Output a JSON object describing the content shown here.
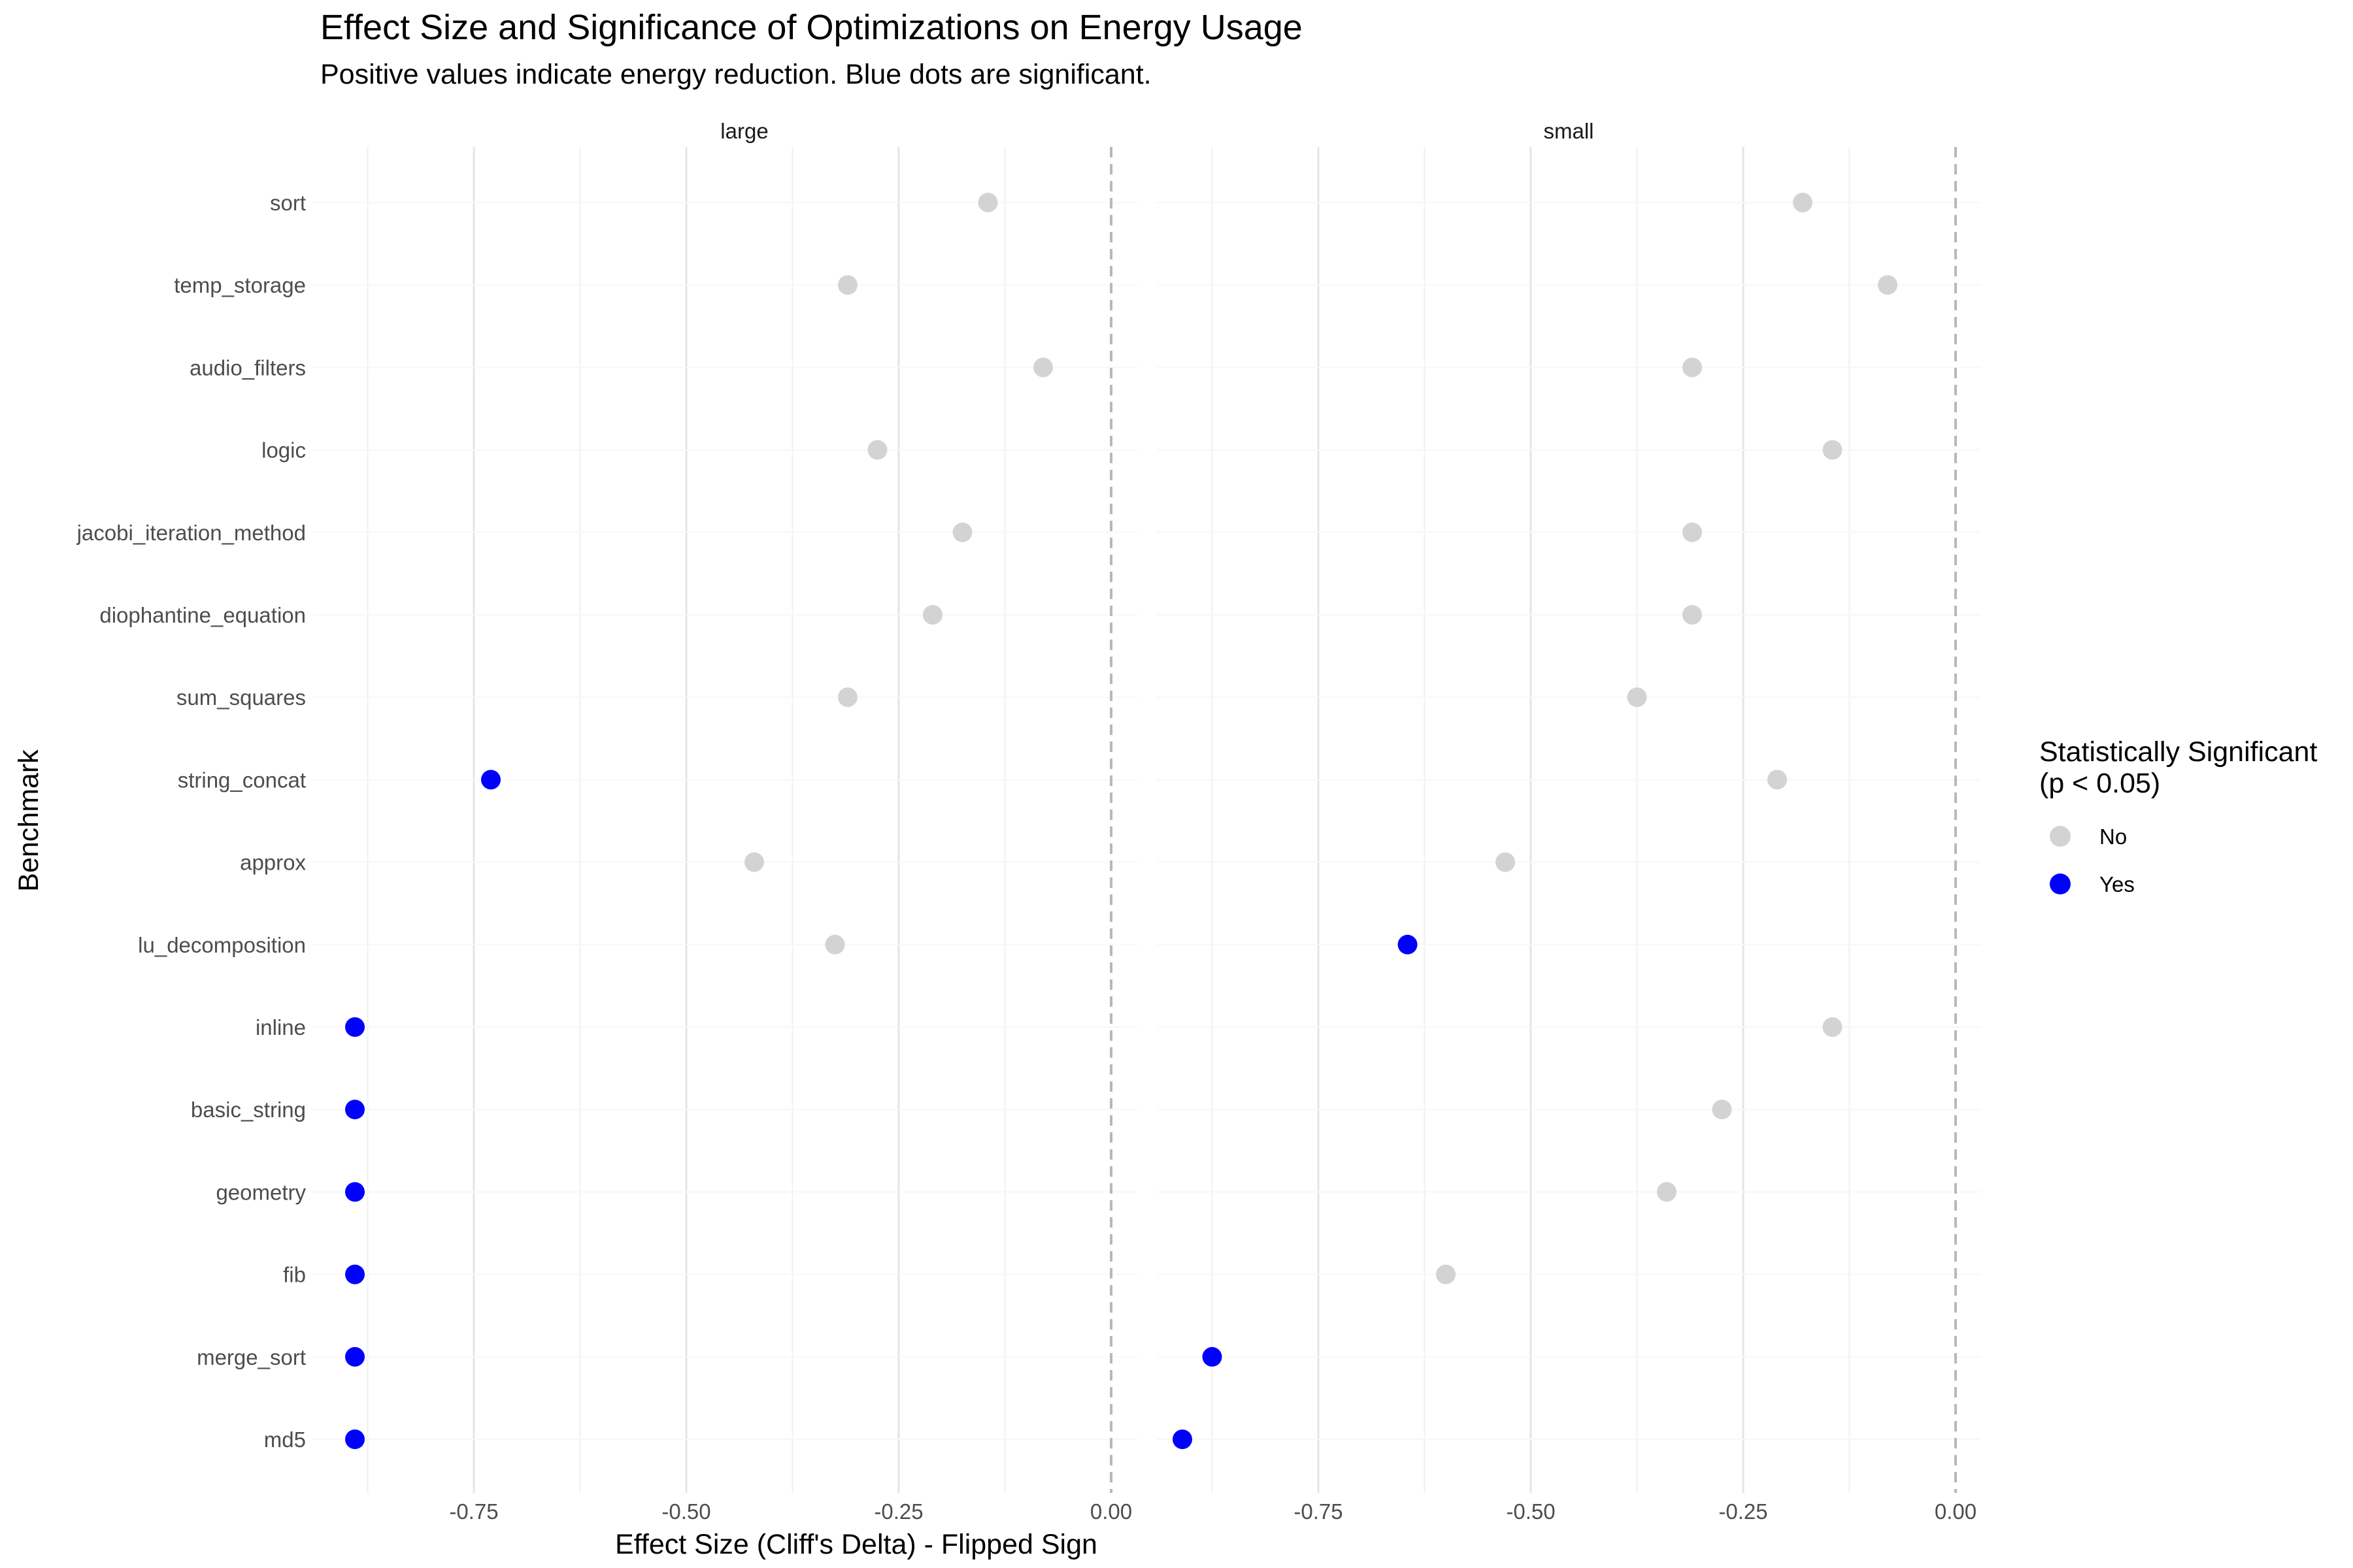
{
  "chart_data": {
    "type": "scatter",
    "title": "Effect Size and Significance of Optimizations on Energy Usage",
    "subtitle": "Positive values indicate energy reduction. Blue dots are significant.",
    "xlabel": "Effect Size (Cliff's Delta) - Flipped Sign",
    "ylabel": "Benchmark",
    "xlim": [
      -0.96,
      0.02
    ],
    "x_tick_labels": [
      "-0.75",
      "-0.50",
      "-0.25",
      "0.00"
    ],
    "x_ticks": [
      -0.75,
      -0.5,
      -0.25,
      0.0
    ],
    "reference_line": 0.0,
    "grid": true,
    "categories": [
      "sort",
      "temp_storage",
      "audio_filters",
      "logic",
      "jacobi_iteration_method",
      "diophantine_equation",
      "sum_squares",
      "string_concat",
      "approx",
      "lu_decomposition",
      "inline",
      "basic_string",
      "geometry",
      "fib",
      "merge_sort",
      "md5"
    ],
    "legend": {
      "title_line1": "Statistically Significant",
      "title_line2": "(p < 0.05)",
      "position": "right",
      "entries": [
        {
          "label": "No",
          "color": "#d3d3d3"
        },
        {
          "label": "Yes",
          "color": "#0000ff"
        }
      ]
    },
    "panels": [
      {
        "name": "large",
        "values": [
          -0.145,
          -0.31,
          -0.08,
          -0.275,
          -0.175,
          -0.21,
          -0.31,
          -0.73,
          -0.42,
          -0.325,
          -0.89,
          -0.89,
          -0.89,
          -0.89,
          -0.89,
          -0.89
        ],
        "significant": [
          "No",
          "No",
          "No",
          "No",
          "No",
          "No",
          "No",
          "Yes",
          "No",
          "No",
          "Yes",
          "Yes",
          "Yes",
          "Yes",
          "Yes",
          "Yes"
        ]
      },
      {
        "name": "small",
        "values": [
          -0.18,
          -0.08,
          -0.31,
          -0.145,
          -0.31,
          -0.31,
          -0.375,
          -0.21,
          -0.53,
          -0.645,
          -0.145,
          -0.275,
          -0.34,
          -0.6,
          -0.875,
          -0.91
        ],
        "significant": [
          "No",
          "No",
          "No",
          "No",
          "No",
          "No",
          "No",
          "No",
          "No",
          "Yes",
          "No",
          "No",
          "No",
          "No",
          "Yes",
          "Yes"
        ]
      }
    ]
  }
}
